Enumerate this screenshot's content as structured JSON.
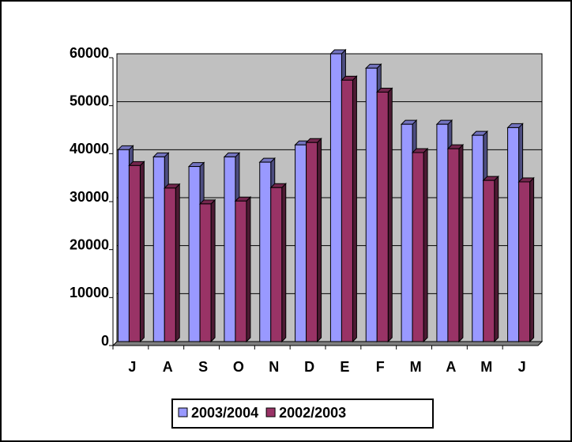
{
  "chart_data": {
    "type": "bar3d",
    "categories": [
      "J",
      "A",
      "S",
      "O",
      "N",
      "D",
      "E",
      "F",
      "M",
      "A",
      "M",
      "J"
    ],
    "series": [
      {
        "name": "2003/2004",
        "color": "#9999ff",
        "values": [
          40000,
          38500,
          36500,
          38500,
          37400,
          41000,
          60000,
          57000,
          45300,
          45300,
          43000,
          44600
        ]
      },
      {
        "name": "2002/2003",
        "color": "#993366",
        "values": [
          36700,
          32000,
          28700,
          29300,
          32100,
          41500,
          54500,
          52000,
          39400,
          40200,
          33600,
          33300
        ]
      }
    ],
    "ylim": [
      0,
      60000
    ],
    "yticks": [
      0,
      10000,
      20000,
      30000,
      40000,
      50000,
      60000
    ],
    "grid": true,
    "legend": "bottom",
    "plot_background": "#c0c0c0"
  }
}
